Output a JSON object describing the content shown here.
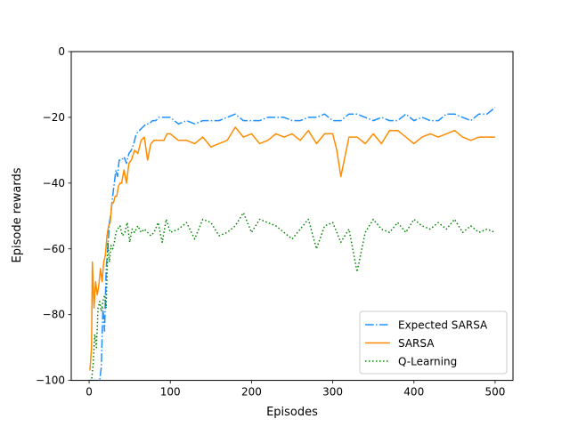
{
  "chart_data": {
    "type": "line",
    "title": "",
    "xlabel": "Episodes",
    "ylabel": "Episode rewards",
    "xlim": [
      -22,
      522
    ],
    "ylim": [
      -100,
      0
    ],
    "xticks": [
      0,
      100,
      200,
      300,
      400,
      500
    ],
    "yticks": [
      -100,
      -80,
      -60,
      -40,
      -20,
      0
    ],
    "grid": false,
    "legend_position": "bottom-right",
    "series": [
      {
        "name": "Expected SARSA",
        "color": "#1e90ff",
        "dash": "dashdot",
        "x": [
          1,
          3,
          5,
          7,
          9,
          11,
          13,
          15,
          17,
          19,
          21,
          23,
          25,
          27,
          29,
          31,
          33,
          35,
          37,
          40,
          43,
          46,
          49,
          52,
          55,
          58,
          62,
          66,
          70,
          74,
          78,
          82,
          86,
          90,
          95,
          100,
          110,
          120,
          130,
          140,
          150,
          160,
          170,
          180,
          190,
          200,
          210,
          220,
          230,
          240,
          250,
          260,
          270,
          280,
          290,
          300,
          310,
          320,
          330,
          340,
          350,
          360,
          370,
          380,
          390,
          400,
          410,
          420,
          430,
          440,
          450,
          460,
          470,
          480,
          490,
          500
        ],
        "y": [
          -100,
          -100,
          -100,
          -100,
          -100,
          -100,
          -100,
          -96,
          -78,
          -85,
          -66,
          -60,
          -52,
          -49,
          -44,
          -40,
          -36,
          -38,
          -33,
          -33,
          -32,
          -34,
          -31,
          -30,
          -28,
          -25,
          -24,
          -23,
          -22,
          -22,
          -21,
          -21,
          -20,
          -20,
          -20,
          -20,
          -22,
          -21,
          -22,
          -21,
          -21,
          -21,
          -20,
          -19,
          -21,
          -21,
          -21,
          -20,
          -20,
          -20,
          -21,
          -21,
          -20,
          -20,
          -19,
          -21,
          -21,
          -19,
          -19,
          -20,
          -21,
          -20,
          -21,
          -21,
          -19,
          -21,
          -20,
          -21,
          -21,
          -19,
          -19,
          -20,
          -21,
          -19,
          -19,
          -17
        ]
      },
      {
        "name": "SARSA",
        "color": "#ff8c00",
        "dash": "solid",
        "x": [
          1,
          3,
          4,
          6,
          8,
          10,
          12,
          14,
          16,
          18,
          20,
          22,
          24,
          26,
          28,
          30,
          32,
          34,
          36,
          38,
          40,
          43,
          46,
          49,
          52,
          56,
          60,
          64,
          68,
          72,
          76,
          80,
          84,
          88,
          92,
          96,
          100,
          110,
          120,
          130,
          140,
          150,
          160,
          170,
          180,
          190,
          200,
          210,
          220,
          230,
          240,
          250,
          260,
          270,
          280,
          290,
          300,
          305,
          310,
          320,
          330,
          340,
          350,
          360,
          370,
          380,
          390,
          400,
          410,
          420,
          430,
          440,
          450,
          460,
          470,
          480,
          490,
          500
        ],
        "y": [
          -97,
          -90,
          -64,
          -78,
          -70,
          -74,
          -71,
          -66,
          -70,
          -64,
          -62,
          -56,
          -53,
          -52,
          -46,
          -46,
          -44,
          -44,
          -41,
          -40,
          -40,
          -36,
          -40,
          -34,
          -33,
          -30,
          -31,
          -27,
          -26,
          -33,
          -28,
          -27,
          -27,
          -27,
          -27,
          -25,
          -25,
          -27,
          -27,
          -28,
          -26,
          -29,
          -28,
          -27,
          -23,
          -26,
          -25,
          -28,
          -27,
          -25,
          -26,
          -25,
          -27,
          -24,
          -28,
          -25,
          -25,
          -30,
          -38,
          -26,
          -26,
          -28,
          -25,
          -28,
          -24,
          -24,
          -26,
          -28,
          -26,
          -25,
          -26,
          -25,
          -24,
          -26,
          -27,
          -26,
          -26,
          -26
        ]
      },
      {
        "name": "Q-Learning",
        "color": "#008000",
        "dash": "dotted",
        "x": [
          1,
          3,
          5,
          7,
          9,
          11,
          13,
          15,
          17,
          19,
          21,
          23,
          25,
          27,
          29,
          31,
          33,
          35,
          38,
          41,
          44,
          47,
          50,
          53,
          56,
          60,
          64,
          68,
          72,
          76,
          80,
          85,
          90,
          95,
          100,
          110,
          120,
          130,
          140,
          150,
          160,
          170,
          180,
          190,
          200,
          210,
          220,
          230,
          240,
          250,
          260,
          270,
          280,
          290,
          300,
          310,
          320,
          330,
          340,
          350,
          360,
          370,
          380,
          390,
          400,
          410,
          420,
          430,
          440,
          450,
          460,
          470,
          480,
          490,
          500
        ],
        "y": [
          -100,
          -100,
          -95,
          -86,
          -90,
          -78,
          -76,
          -79,
          -76,
          -74,
          -78,
          -58,
          -64,
          -59,
          -60,
          -58,
          -55,
          -54,
          -53,
          -56,
          -55,
          -52,
          -58,
          -54,
          -55,
          -53,
          -55,
          -54,
          -55,
          -56,
          -55,
          -52,
          -58,
          -51,
          -55,
          -54,
          -52,
          -57,
          -51,
          -52,
          -56,
          -55,
          -53,
          -49,
          -55,
          -51,
          -52,
          -53,
          -55,
          -57,
          -54,
          -51,
          -60,
          -53,
          -52,
          -58,
          -54,
          -67,
          -55,
          -51,
          -54,
          -55,
          -52,
          -55,
          -51,
          -53,
          -54,
          -52,
          -54,
          -51,
          -55,
          -53,
          -55,
          -54,
          -55
        ]
      }
    ]
  }
}
